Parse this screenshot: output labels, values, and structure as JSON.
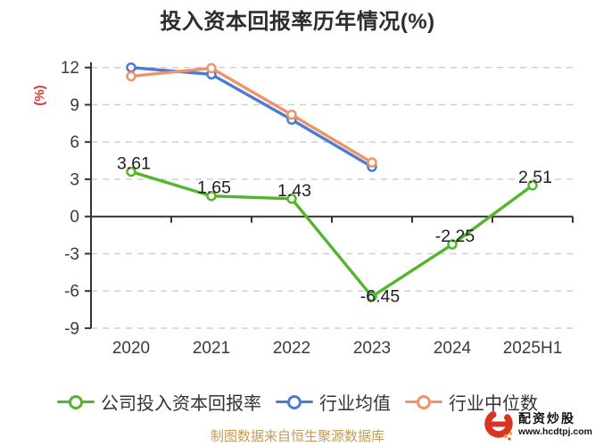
{
  "chart_data": {
    "type": "line",
    "title": "投入资本回报率历年情况(%)",
    "ylabel": "(%)",
    "ylabel_color": "#e03232",
    "categories": [
      "2020",
      "2021",
      "2022",
      "2023",
      "2024",
      "2025H1"
    ],
    "yticks": [
      12,
      9,
      6,
      3,
      0,
      -3,
      -6,
      -9
    ],
    "ylim": [
      -9,
      12
    ],
    "grid": "horizontal-dashed",
    "legend_position": "bottom",
    "axis_color": "#333333",
    "grid_color": "#cccccc",
    "tick_label_color": "#3b3b3b",
    "value_label_color": "#1f1f1f",
    "series": [
      {
        "name": "公司投入资本回报率",
        "color": "#55b42e",
        "values": [
          3.61,
          1.65,
          1.43,
          -6.45,
          -2.25,
          2.51
        ],
        "labels_shown": true
      },
      {
        "name": "行业均值",
        "color": "#4c7bd2",
        "values": [
          12.0,
          11.45,
          7.8,
          4.0,
          null,
          null
        ],
        "labels_shown": false
      },
      {
        "name": "行业中位数",
        "color": "#ef9468",
        "values": [
          11.3,
          11.95,
          8.2,
          4.35,
          null,
          null
        ],
        "labels_shown": false
      }
    ]
  },
  "footer": {
    "source_note": "制图数据来自恒生聚源数据库"
  },
  "watermark": {
    "brand": "配资炒股",
    "url": "www.hcdtpj.com",
    "logo_color": "#d93322",
    "logo_accent": "#f5a623"
  }
}
